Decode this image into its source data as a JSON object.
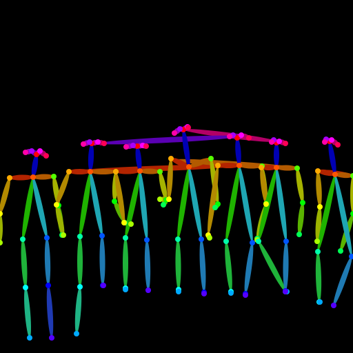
{
  "scene": {
    "background": "#000000",
    "limb_colors": {
      "neck_left_shoulder": "#b32400",
      "neck_right_shoulder": "#b35a00",
      "left_upper_arm": "#b38a00",
      "left_forearm": "#9cb300",
      "right_upper_arm": "#a6b300",
      "right_forearm": "#5ab300",
      "neck_left_hip": "#1fb300",
      "left_thigh": "#1fb33a",
      "left_shin": "#1fb384",
      "neck_right_hip": "#1fa6b3",
      "right_thigh": "#1f7ab3",
      "right_shin": "#1f3ab3",
      "neck_nose": "#0000b3",
      "nose_left_eye": "#5a00b3",
      "left_eye_ear": "#9a00b3",
      "nose_right_eye": "#b300b3",
      "right_eye_ear": "#b30066"
    },
    "joint_colors": {
      "nose": "#ff0000",
      "neck": "#ff5500",
      "right_shoulder": "#ffaa00",
      "right_elbow": "#ffff00",
      "right_wrist": "#aaff00",
      "left_shoulder": "#55ff00",
      "left_elbow": "#00ff00",
      "left_wrist": "#00ff55",
      "right_hip": "#00ffaa",
      "right_knee": "#00ffff",
      "right_ankle": "#00aaff",
      "left_hip": "#0055ff",
      "left_knee": "#0000ff",
      "left_ankle": "#5500ff",
      "right_eye": "#aa00ff",
      "left_eye": "#ff00ff",
      "right_ear": "#ff00aa",
      "left_ear": "#ff0055"
    }
  }
}
